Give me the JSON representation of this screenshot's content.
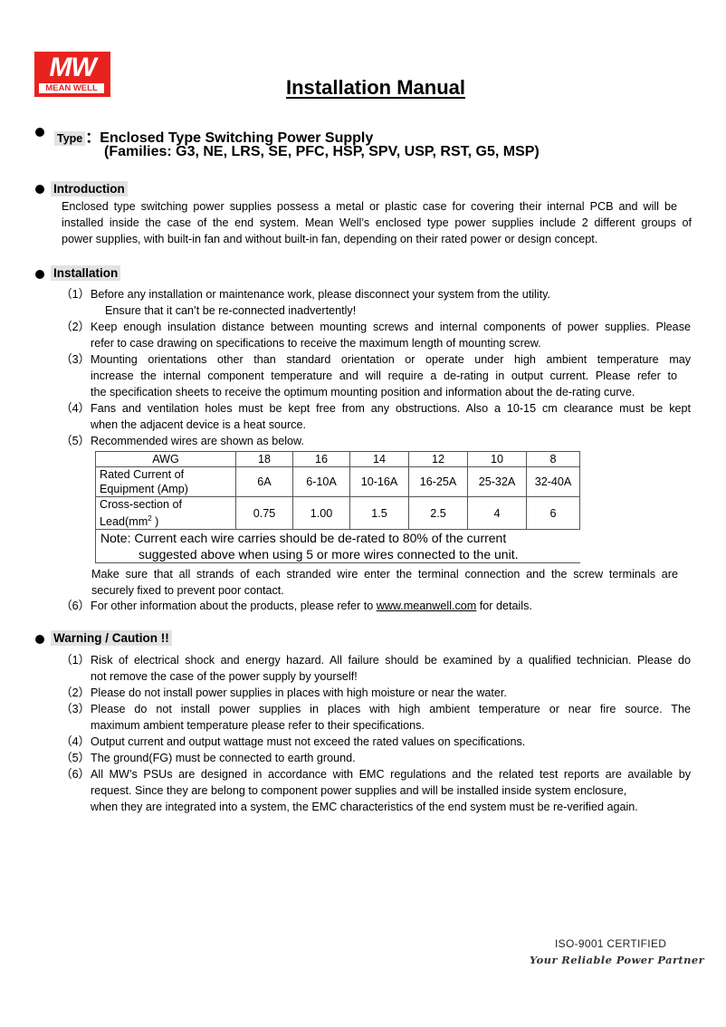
{
  "logo": {
    "mark": "MW",
    "text": "MEAN WELL",
    "color": "#e8231f"
  },
  "title": "Installation Manual",
  "type": {
    "label": "Type",
    "separator": "：",
    "value": "Enclosed Type Switching Power Supply",
    "families": "(Families: G3, NE, LRS, SE, PFC, HSP, SPV, USP, RST, G5, MSP)"
  },
  "introduction": {
    "heading": "Introduction",
    "lines": [
      "Enclosed type switching power supplies possess a metal or plastic case for covering their internal PCB and will be",
      "installed inside the case of the end system. Mean Well’s enclosed type power supplies include 2 different groups of",
      "power supplies, with built-in fan and without built-in fan, depending on their rated power or design concept."
    ]
  },
  "installation": {
    "heading": "Installation",
    "items": [
      {
        "num": "（1）",
        "lines": [
          "Before any installation or maintenance work, please disconnect your system from the utility.",
          "Ensure that it can’t be re-connected inadvertently!"
        ]
      },
      {
        "num": "（2）",
        "lines": [
          "Keep enough insulation distance between mounting screws and internal components of power supplies. Please",
          "refer to case drawing on specifications to receive the maximum length of mounting screw."
        ]
      },
      {
        "num": "（3）",
        "lines": [
          "Mounting orientations other than standard orientation or operate under high ambient temperature may",
          "increase the internal component temperature and will require a de-rating in output current. Please refer to",
          "the specification sheets to receive the optimum mounting position and information about the de-rating curve."
        ]
      },
      {
        "num": "（4）",
        "lines": [
          "Fans and ventilation holes must be kept free from any obstructions. Also a 10-15 cm clearance must be kept",
          "when the adjacent device is a heat source."
        ]
      },
      {
        "num": "（5）",
        "lines": [
          "Recommended wires are shown as below."
        ]
      }
    ],
    "table": {
      "header": [
        "AWG",
        "18",
        "16",
        "14",
        "12",
        "10",
        "8"
      ],
      "rated_current": {
        "label_l1": "Rated Current of",
        "label_l2": "Equipment (Amp)",
        "values": [
          "6A",
          "6-10A",
          "10-16A",
          "16-25A",
          "25-32A",
          "32-40A"
        ]
      },
      "cross_section": {
        "label_l1": "Cross-section of",
        "label_l2": "Lead(mm",
        "sup": "2",
        "label_end": " )",
        "values": [
          "0.75",
          "1.00",
          "1.5",
          "2.5",
          "4",
          "6"
        ]
      },
      "note_l1": "Note: Current each wire carries should be de-rated to 80% of the current",
      "note_l2": "suggested above when using 5 or more wires connected to the unit."
    },
    "after_table": [
      "Make sure that all strands of each stranded wire enter the terminal connection and the screw terminals are",
      "securely fixed to prevent poor contact."
    ],
    "item6": {
      "num": "（6）",
      "before": "For other information about the products, please refer to ",
      "link": "www.meanwell.com",
      "after": " for details."
    }
  },
  "warning": {
    "heading": "Warning / Caution !!",
    "items": [
      {
        "num": "（1）",
        "lines": [
          "Risk of electrical shock and energy hazard. All failure should be examined by a qualified technician. Please do",
          "not remove the case of the power supply by yourself!"
        ]
      },
      {
        "num": "（2）",
        "lines": [
          "Please do not install power supplies in places with high moisture or near the water."
        ]
      },
      {
        "num": "（3）",
        "lines": [
          "Please do not install power supplies in places with high ambient temperature or near fire source. The",
          "maximum ambient temperature please refer to their specifications."
        ]
      },
      {
        "num": "（4）",
        "lines": [
          "Output current and output wattage must not exceed the rated values on specifications."
        ]
      },
      {
        "num": "（5）",
        "lines": [
          "The ground(FG) must be connected to earth ground."
        ]
      },
      {
        "num": "（6）",
        "lines": [
          "All MW’s PSUs are designed in accordance with EMC regulations and the related test reports are available by",
          "request. Since they are belong to component power supplies and will be installed inside system enclosure,",
          "when they are integrated into a system, the EMC characteristics of the end system must be re-verified again."
        ]
      }
    ]
  },
  "footer": {
    "certified": "ISO-9001 CERTIFIED",
    "slogan": "Your Reliable Power Partner"
  }
}
